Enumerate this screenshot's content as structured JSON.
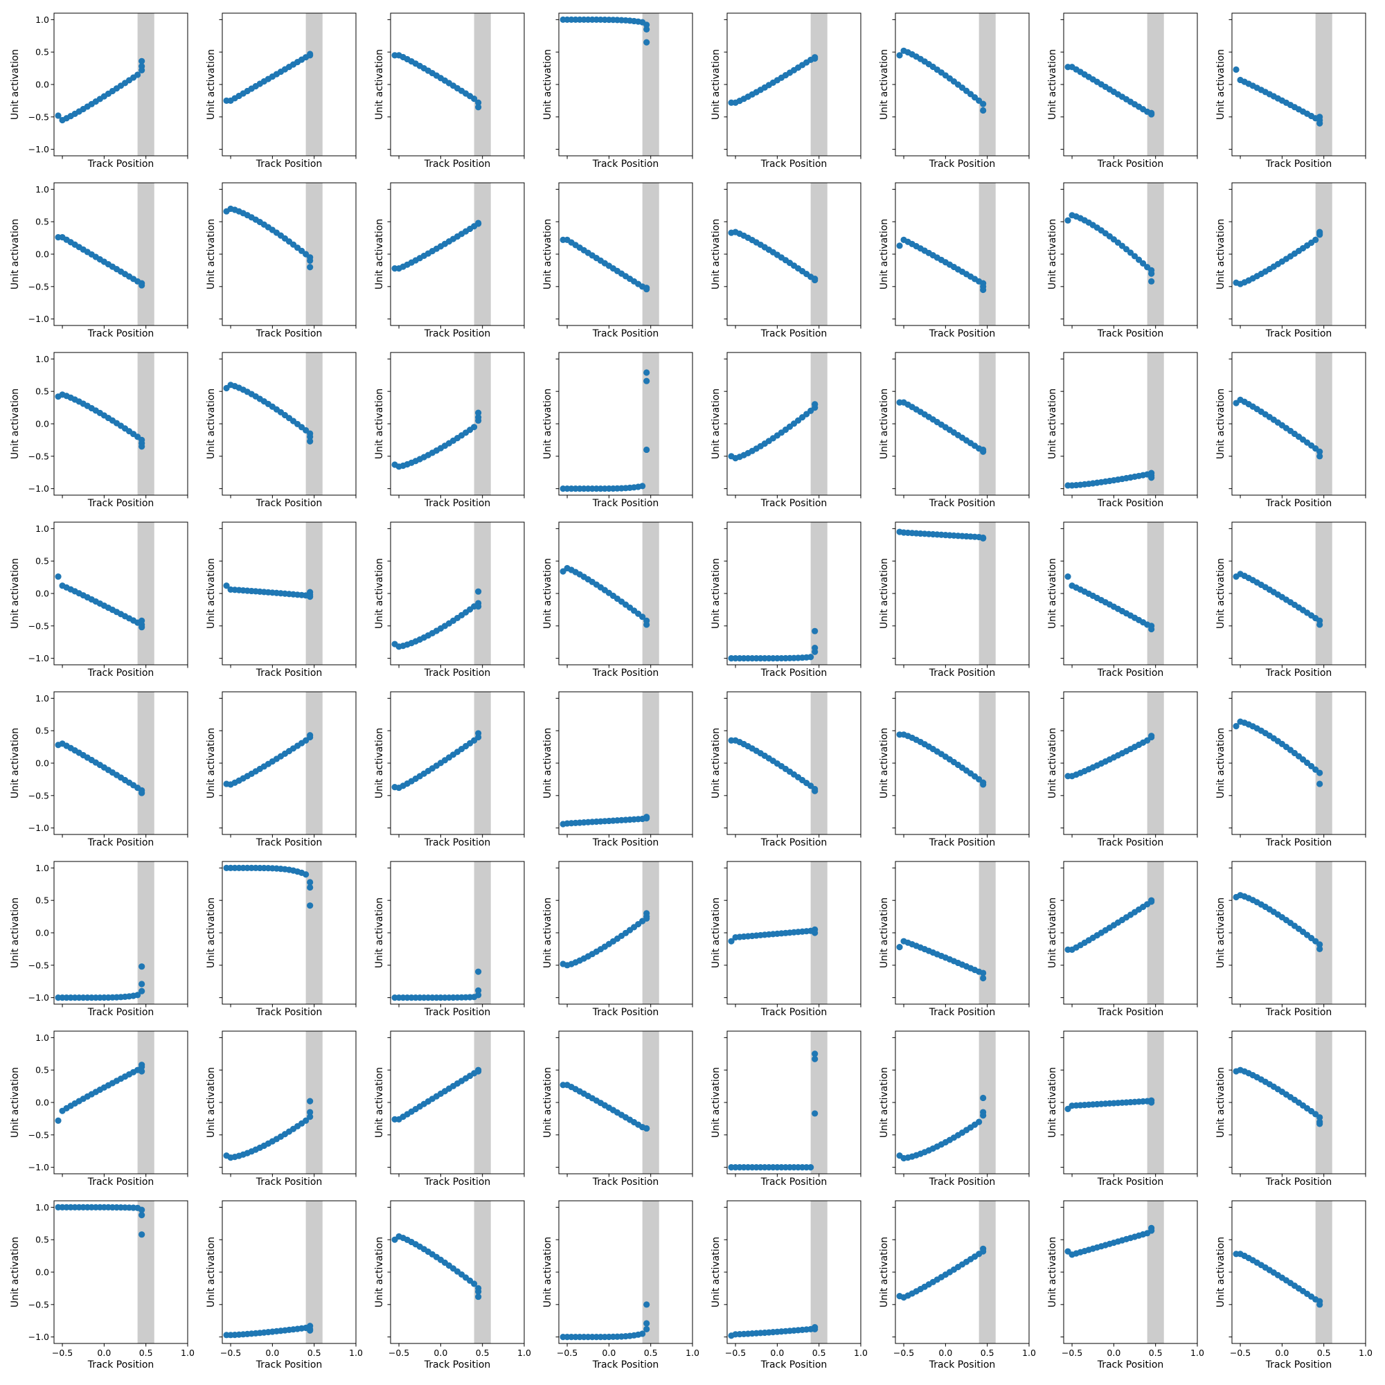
{
  "chart_data": {
    "type": "scatter",
    "layout": {
      "rows": 8,
      "cols": 8,
      "sharex": true,
      "sharey": true
    },
    "xlabel": "Track Position",
    "ylabel": "Unit activation",
    "xlim": [
      -0.6,
      1.0
    ],
    "ylim": [
      -1.1,
      1.1
    ],
    "xticks": [
      -0.5,
      0.0,
      0.5,
      1.0
    ],
    "xticklabels": [
      "−0.5",
      "0.0",
      "0.5",
      "1.0"
    ],
    "yticks": [
      -1.0,
      -0.5,
      0.0,
      0.5,
      1.0
    ],
    "yticklabels": [
      "−1.0",
      "−0.5",
      "0.0",
      "0.5",
      "1.0"
    ],
    "shaded_region": [
      0.4,
      0.6
    ],
    "x_sweep": {
      "start": -0.55,
      "end": 0.4,
      "points": 20,
      "extra_x": 0.45
    },
    "colors": {
      "points": "#1f77b4",
      "band": "#bfbfbf"
    },
    "panels": [
      {
        "y0": -0.48,
        "y1": -0.55,
        "y2": 0.15,
        "p": 1.1,
        "extra": [
          0.36,
          0.28,
          0.22
        ]
      },
      {
        "y0": -0.25,
        "y1": -0.25,
        "y2": 0.42,
        "p": 1.0,
        "extra": [
          0.47,
          0.45
        ]
      },
      {
        "y0": 0.45,
        "y1": 0.45,
        "y2": -0.22,
        "p": 1.1,
        "extra": [
          -0.28,
          -0.35
        ]
      },
      {
        "y0": 1.0,
        "y1": 1.0,
        "y2": 0.96,
        "p": 5.0,
        "extra": [
          0.92,
          0.85,
          0.65
        ]
      },
      {
        "y0": -0.28,
        "y1": -0.28,
        "y2": 0.38,
        "p": 1.1,
        "extra": [
          0.42,
          0.4
        ]
      },
      {
        "y0": 0.45,
        "y1": 0.52,
        "y2": -0.25,
        "p": 1.2,
        "extra": [
          -0.3,
          -0.4
        ]
      },
      {
        "y0": 0.27,
        "y1": 0.27,
        "y2": -0.42,
        "p": 1.0,
        "extra": [
          -0.44,
          -0.46
        ]
      },
      {
        "y0": 0.23,
        "y1": 0.07,
        "y2": -0.52,
        "p": 1.05,
        "extra": [
          -0.5,
          -0.55,
          -0.6
        ]
      },
      {
        "y0": 0.26,
        "y1": 0.26,
        "y2": -0.42,
        "p": 1.0,
        "extra": [
          -0.45,
          -0.48
        ]
      },
      {
        "y0": 0.66,
        "y1": 0.7,
        "y2": 0.0,
        "p": 1.3,
        "extra": [
          -0.05,
          -0.1,
          -0.2
        ]
      },
      {
        "y0": -0.22,
        "y1": -0.22,
        "y2": 0.43,
        "p": 1.1,
        "extra": [
          0.47,
          0.48
        ]
      },
      {
        "y0": 0.22,
        "y1": 0.22,
        "y2": -0.5,
        "p": 1.0,
        "extra": [
          -0.52,
          -0.54
        ]
      },
      {
        "y0": 0.33,
        "y1": 0.34,
        "y2": -0.35,
        "p": 1.15,
        "extra": [
          -0.38,
          -0.4
        ]
      },
      {
        "y0": 0.13,
        "y1": 0.22,
        "y2": -0.42,
        "p": 1.05,
        "extra": [
          -0.45,
          -0.5,
          -0.55
        ]
      },
      {
        "y0": 0.52,
        "y1": 0.6,
        "y2": -0.2,
        "p": 1.3,
        "extra": [
          -0.25,
          -0.3,
          -0.42
        ]
      },
      {
        "y0": -0.44,
        "y1": -0.46,
        "y2": 0.22,
        "p": 1.15,
        "extra": [
          0.3,
          0.32,
          0.34
        ]
      },
      {
        "y0": 0.42,
        "y1": 0.45,
        "y2": -0.2,
        "p": 1.2,
        "extra": [
          -0.25,
          -0.3,
          -0.35
        ]
      },
      {
        "y0": 0.55,
        "y1": 0.6,
        "y2": -0.1,
        "p": 1.25,
        "extra": [
          -0.15,
          -0.2,
          -0.27
        ]
      },
      {
        "y0": -0.63,
        "y1": -0.66,
        "y2": -0.05,
        "p": 1.3,
        "extra": [
          0.05,
          0.1,
          0.17
        ]
      },
      {
        "y0": -1.0,
        "y1": -1.0,
        "y2": -0.96,
        "p": 6.0,
        "extra": [
          0.79,
          0.66,
          -0.4
        ]
      },
      {
        "y0": -0.5,
        "y1": -0.53,
        "y2": 0.2,
        "p": 1.25,
        "extra": [
          0.25,
          0.3,
          0.3
        ]
      },
      {
        "y0": 0.33,
        "y1": 0.33,
        "y2": -0.38,
        "p": 1.05,
        "extra": [
          -0.4,
          -0.43
        ]
      },
      {
        "y0": -0.95,
        "y1": -0.95,
        "y2": -0.78,
        "p": 1.3,
        "extra": [
          -0.76,
          -0.8,
          -0.83
        ]
      },
      {
        "y0": 0.32,
        "y1": 0.37,
        "y2": -0.38,
        "p": 1.1,
        "extra": [
          -0.43,
          -0.5
        ]
      },
      {
        "y0": 0.26,
        "y1": 0.12,
        "y2": -0.45,
        "p": 1.05,
        "extra": [
          -0.42,
          -0.48,
          -0.52
        ]
      },
      {
        "y0": 0.12,
        "y1": 0.06,
        "y2": -0.03,
        "p": 1.1,
        "extra": [
          0.02,
          -0.02,
          -0.05
        ]
      },
      {
        "y0": -0.78,
        "y1": -0.82,
        "y2": -0.2,
        "p": 1.35,
        "extra": [
          0.03,
          -0.15,
          -0.2
        ]
      },
      {
        "y0": 0.34,
        "y1": 0.39,
        "y2": -0.36,
        "p": 1.15,
        "extra": [
          -0.42,
          -0.48
        ]
      },
      {
        "y0": -1.0,
        "y1": -1.0,
        "y2": -0.98,
        "p": 6.0,
        "extra": [
          -0.58,
          -0.84,
          -0.9
        ]
      },
      {
        "y0": 0.95,
        "y1": 0.94,
        "y2": 0.87,
        "p": 1.0,
        "extra": [
          0.85,
          0.86
        ]
      },
      {
        "y0": 0.26,
        "y1": 0.12,
        "y2": -0.48,
        "p": 1.05,
        "extra": [
          -0.5,
          -0.55
        ]
      },
      {
        "y0": 0.26,
        "y1": 0.3,
        "y2": -0.38,
        "p": 1.1,
        "extra": [
          -0.42,
          -0.48
        ]
      },
      {
        "y0": 0.28,
        "y1": 0.3,
        "y2": -0.38,
        "p": 1.05,
        "extra": [
          -0.42,
          -0.46
        ]
      },
      {
        "y0": -0.32,
        "y1": -0.33,
        "y2": 0.35,
        "p": 1.1,
        "extra": [
          0.4,
          0.43
        ]
      },
      {
        "y0": -0.37,
        "y1": -0.38,
        "y2": 0.35,
        "p": 1.1,
        "extra": [
          0.4,
          0.46
        ]
      },
      {
        "y0": -0.94,
        "y1": -0.93,
        "y2": -0.86,
        "p": 1.0,
        "extra": [
          -0.83,
          -0.85
        ]
      },
      {
        "y0": 0.35,
        "y1": 0.35,
        "y2": -0.35,
        "p": 1.15,
        "extra": [
          -0.4,
          -0.43
        ]
      },
      {
        "y0": 0.44,
        "y1": 0.44,
        "y2": -0.25,
        "p": 1.2,
        "extra": [
          -0.3,
          -0.33
        ]
      },
      {
        "y0": -0.2,
        "y1": -0.2,
        "y2": 0.35,
        "p": 1.1,
        "extra": [
          0.4,
          0.42
        ]
      },
      {
        "y0": 0.57,
        "y1": 0.64,
        "y2": -0.1,
        "p": 1.3,
        "extra": [
          -0.15,
          -0.32
        ]
      },
      {
        "y0": -1.0,
        "y1": -1.0,
        "y2": -0.96,
        "p": 6.0,
        "extra": [
          -0.52,
          -0.79,
          -0.9
        ]
      },
      {
        "y0": 1.0,
        "y1": 1.0,
        "y2": 0.9,
        "p": 5.0,
        "extra": [
          0.78,
          0.7,
          0.42
        ]
      },
      {
        "y0": -1.0,
        "y1": -1.0,
        "y2": -0.99,
        "p": 6.0,
        "extra": [
          -0.6,
          -0.89,
          -0.96
        ]
      },
      {
        "y0": -0.48,
        "y1": -0.5,
        "y2": 0.18,
        "p": 1.25,
        "extra": [
          0.3,
          0.25,
          0.22
        ]
      },
      {
        "y0": -0.13,
        "y1": -0.07,
        "y2": 0.03,
        "p": 1.0,
        "extra": [
          0.05,
          0.0
        ]
      },
      {
        "y0": -0.22,
        "y1": -0.13,
        "y2": -0.6,
        "p": 1.05,
        "extra": [
          -0.62,
          -0.7
        ]
      },
      {
        "y0": -0.26,
        "y1": -0.26,
        "y2": 0.44,
        "p": 1.05,
        "extra": [
          0.48,
          0.5
        ]
      },
      {
        "y0": 0.55,
        "y1": 0.58,
        "y2": -0.13,
        "p": 1.25,
        "extra": [
          -0.18,
          -0.25
        ]
      },
      {
        "y0": -0.28,
        "y1": -0.13,
        "y2": 0.5,
        "p": 0.95,
        "extra": [
          0.58,
          0.55,
          0.48
        ]
      },
      {
        "y0": -0.82,
        "y1": -0.85,
        "y2": -0.28,
        "p": 1.4,
        "extra": [
          0.02,
          -0.15,
          -0.22
        ]
      },
      {
        "y0": -0.26,
        "y1": -0.26,
        "y2": 0.45,
        "p": 1.0,
        "extra": [
          0.48,
          0.5
        ]
      },
      {
        "y0": 0.27,
        "y1": 0.27,
        "y2": -0.38,
        "p": 1.05,
        "extra": [
          -0.4,
          -0.4
        ]
      },
      {
        "y0": -1.0,
        "y1": -1.0,
        "y2": -1.0,
        "p": 6.0,
        "extra": [
          0.75,
          0.67,
          -0.17
        ]
      },
      {
        "y0": -0.82,
        "y1": -0.86,
        "y2": -0.3,
        "p": 1.4,
        "extra": [
          0.07,
          -0.15,
          -0.2
        ]
      },
      {
        "y0": -0.1,
        "y1": -0.05,
        "y2": 0.02,
        "p": 1.0,
        "extra": [
          0.03,
          0.0
        ]
      },
      {
        "y0": 0.48,
        "y1": 0.5,
        "y2": -0.18,
        "p": 1.2,
        "extra": [
          -0.23,
          -0.3,
          -0.33
        ]
      },
      {
        "y0": 1.0,
        "y1": 1.0,
        "y2": 0.99,
        "p": 6.0,
        "extra": [
          0.96,
          0.88,
          0.58
        ]
      },
      {
        "y0": -0.97,
        "y1": -0.97,
        "y2": -0.86,
        "p": 1.3,
        "extra": [
          -0.83,
          -0.88,
          -0.9
        ]
      },
      {
        "y0": 0.5,
        "y1": 0.55,
        "y2": -0.18,
        "p": 1.2,
        "extra": [
          -0.25,
          -0.3,
          -0.38
        ]
      },
      {
        "y0": -1.0,
        "y1": -1.0,
        "y2": -0.95,
        "p": 6.0,
        "extra": [
          -0.5,
          -0.79,
          -0.88
        ]
      },
      {
        "y0": -0.98,
        "y1": -0.96,
        "y2": -0.88,
        "p": 1.2,
        "extra": [
          -0.85,
          -0.88
        ]
      },
      {
        "y0": -0.37,
        "y1": -0.39,
        "y2": 0.28,
        "p": 1.1,
        "extra": [
          0.36,
          0.32
        ]
      },
      {
        "y0": 0.32,
        "y1": 0.27,
        "y2": 0.6,
        "p": 1.0,
        "extra": [
          0.68,
          0.64
        ]
      },
      {
        "y0": 0.28,
        "y1": 0.28,
        "y2": -0.42,
        "p": 1.1,
        "extra": [
          -0.45,
          -0.5
        ]
      }
    ]
  }
}
